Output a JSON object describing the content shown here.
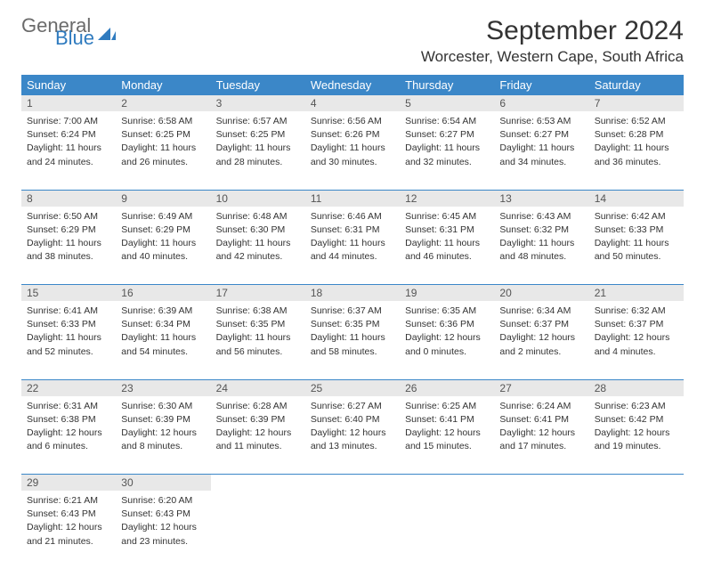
{
  "brand": {
    "word1": "General",
    "word2": "Blue",
    "gray": "#6b6b6b",
    "blue": "#2f7bbf"
  },
  "title": "September 2024",
  "location": "Worcester, Western Cape, South Africa",
  "header_bg": "#3b87c8",
  "header_fg": "#ffffff",
  "daynum_bg": "#e8e8e8",
  "rule_color": "#3b87c8",
  "weekdays": [
    "Sunday",
    "Monday",
    "Tuesday",
    "Wednesday",
    "Thursday",
    "Friday",
    "Saturday"
  ],
  "weeks": [
    [
      {
        "n": "1",
        "sr": "7:00 AM",
        "ss": "6:24 PM",
        "dl": "11 hours and 24 minutes."
      },
      {
        "n": "2",
        "sr": "6:58 AM",
        "ss": "6:25 PM",
        "dl": "11 hours and 26 minutes."
      },
      {
        "n": "3",
        "sr": "6:57 AM",
        "ss": "6:25 PM",
        "dl": "11 hours and 28 minutes."
      },
      {
        "n": "4",
        "sr": "6:56 AM",
        "ss": "6:26 PM",
        "dl": "11 hours and 30 minutes."
      },
      {
        "n": "5",
        "sr": "6:54 AM",
        "ss": "6:27 PM",
        "dl": "11 hours and 32 minutes."
      },
      {
        "n": "6",
        "sr": "6:53 AM",
        "ss": "6:27 PM",
        "dl": "11 hours and 34 minutes."
      },
      {
        "n": "7",
        "sr": "6:52 AM",
        "ss": "6:28 PM",
        "dl": "11 hours and 36 minutes."
      }
    ],
    [
      {
        "n": "8",
        "sr": "6:50 AM",
        "ss": "6:29 PM",
        "dl": "11 hours and 38 minutes."
      },
      {
        "n": "9",
        "sr": "6:49 AM",
        "ss": "6:29 PM",
        "dl": "11 hours and 40 minutes."
      },
      {
        "n": "10",
        "sr": "6:48 AM",
        "ss": "6:30 PM",
        "dl": "11 hours and 42 minutes."
      },
      {
        "n": "11",
        "sr": "6:46 AM",
        "ss": "6:31 PM",
        "dl": "11 hours and 44 minutes."
      },
      {
        "n": "12",
        "sr": "6:45 AM",
        "ss": "6:31 PM",
        "dl": "11 hours and 46 minutes."
      },
      {
        "n": "13",
        "sr": "6:43 AM",
        "ss": "6:32 PM",
        "dl": "11 hours and 48 minutes."
      },
      {
        "n": "14",
        "sr": "6:42 AM",
        "ss": "6:33 PM",
        "dl": "11 hours and 50 minutes."
      }
    ],
    [
      {
        "n": "15",
        "sr": "6:41 AM",
        "ss": "6:33 PM",
        "dl": "11 hours and 52 minutes."
      },
      {
        "n": "16",
        "sr": "6:39 AM",
        "ss": "6:34 PM",
        "dl": "11 hours and 54 minutes."
      },
      {
        "n": "17",
        "sr": "6:38 AM",
        "ss": "6:35 PM",
        "dl": "11 hours and 56 minutes."
      },
      {
        "n": "18",
        "sr": "6:37 AM",
        "ss": "6:35 PM",
        "dl": "11 hours and 58 minutes."
      },
      {
        "n": "19",
        "sr": "6:35 AM",
        "ss": "6:36 PM",
        "dl": "12 hours and 0 minutes."
      },
      {
        "n": "20",
        "sr": "6:34 AM",
        "ss": "6:37 PM",
        "dl": "12 hours and 2 minutes."
      },
      {
        "n": "21",
        "sr": "6:32 AM",
        "ss": "6:37 PM",
        "dl": "12 hours and 4 minutes."
      }
    ],
    [
      {
        "n": "22",
        "sr": "6:31 AM",
        "ss": "6:38 PM",
        "dl": "12 hours and 6 minutes."
      },
      {
        "n": "23",
        "sr": "6:30 AM",
        "ss": "6:39 PM",
        "dl": "12 hours and 8 minutes."
      },
      {
        "n": "24",
        "sr": "6:28 AM",
        "ss": "6:39 PM",
        "dl": "12 hours and 11 minutes."
      },
      {
        "n": "25",
        "sr": "6:27 AM",
        "ss": "6:40 PM",
        "dl": "12 hours and 13 minutes."
      },
      {
        "n": "26",
        "sr": "6:25 AM",
        "ss": "6:41 PM",
        "dl": "12 hours and 15 minutes."
      },
      {
        "n": "27",
        "sr": "6:24 AM",
        "ss": "6:41 PM",
        "dl": "12 hours and 17 minutes."
      },
      {
        "n": "28",
        "sr": "6:23 AM",
        "ss": "6:42 PM",
        "dl": "12 hours and 19 minutes."
      }
    ],
    [
      {
        "n": "29",
        "sr": "6:21 AM",
        "ss": "6:43 PM",
        "dl": "12 hours and 21 minutes."
      },
      {
        "n": "30",
        "sr": "6:20 AM",
        "ss": "6:43 PM",
        "dl": "12 hours and 23 minutes."
      },
      null,
      null,
      null,
      null,
      null
    ]
  ],
  "labels": {
    "sunrise": "Sunrise:",
    "sunset": "Sunset:",
    "daylight": "Daylight:"
  }
}
